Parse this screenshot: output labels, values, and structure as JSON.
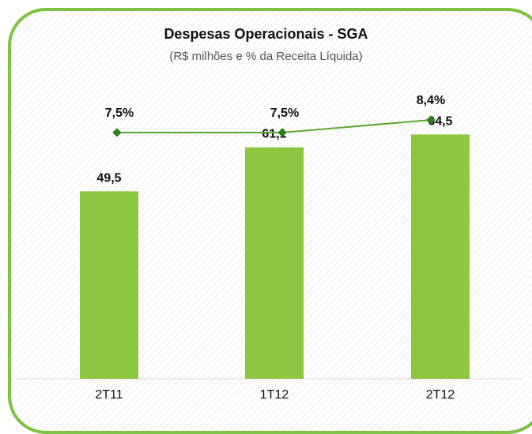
{
  "chart_data": {
    "type": "bar",
    "title": "Despesas Operacionais - SGA",
    "subtitle": "(R$ milhões  e % da Receita Líquida)",
    "categories": [
      "2T11",
      "1T12",
      "2T12"
    ],
    "series": [
      {
        "type": "bar",
        "values": [
          49.5,
          61.1,
          64.5
        ],
        "labels": [
          "49,5",
          "61,1",
          "64,5"
        ],
        "color": "#8dc63f"
      },
      {
        "type": "line",
        "values": [
          7.5,
          7.5,
          8.4
        ],
        "labels": [
          "7,5%",
          "7,5%",
          "8,4%"
        ],
        "color": "#5aab2e"
      }
    ],
    "ylim": [
      0,
      100
    ],
    "grid": false,
    "legend": "none"
  },
  "colors": {
    "frame": "#7dc242",
    "bar": "#8dc63f",
    "line": "#5aab2e",
    "marker": "#2e7d1f"
  }
}
